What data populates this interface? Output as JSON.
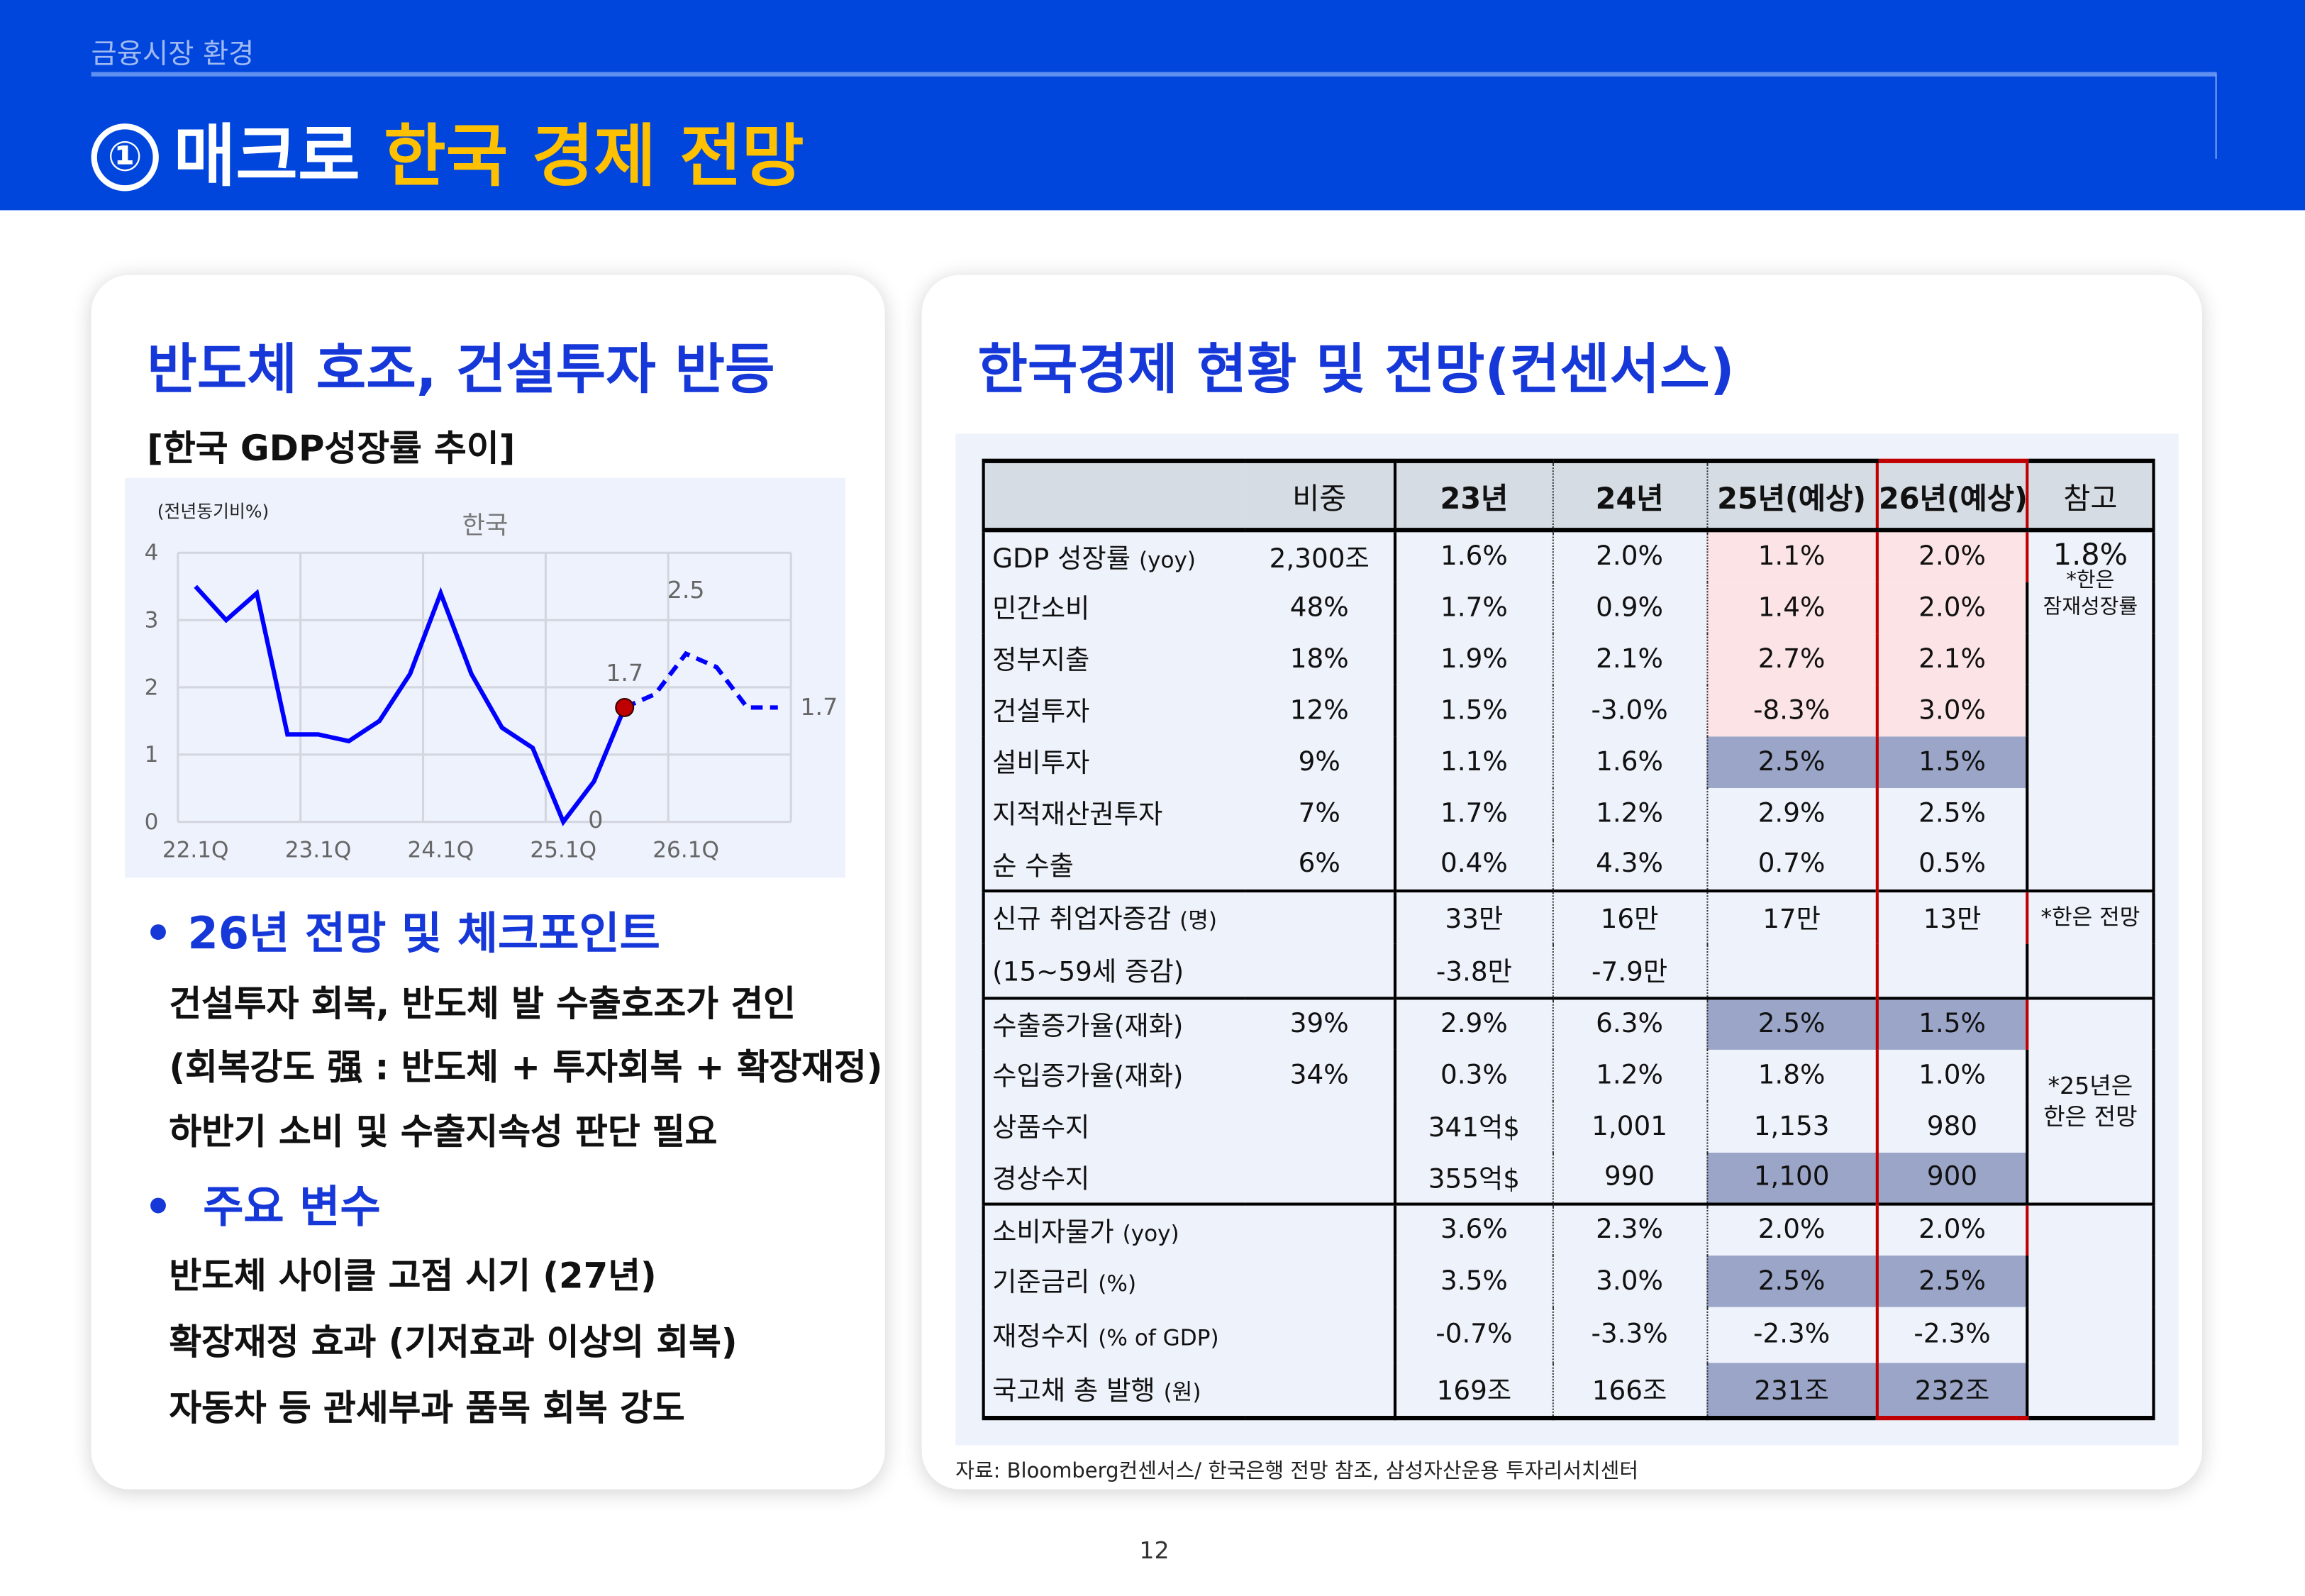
{
  "header": {
    "breadcrumb": "금융시장 환경",
    "number": "①",
    "title_white": "매크로",
    "title_yellow": "한국 경제 전망"
  },
  "left": {
    "heading": "반도체 호조, 건설투자 반등",
    "subheading": "[한국 GDP성장률 추이]",
    "section1": {
      "title": "26년 전망 및 체크포인트",
      "lines": [
        "건설투자 회복, 반도체 발 수출호조가 견인",
        "(회복강도 强 : 반도체 + 투자회복 + 확장재정)",
        "하반기 소비 및 수출지속성 판단 필요"
      ]
    },
    "section2": {
      "title": "주요 변수",
      "lines": [
        "반도체 사이클 고점 시기 (27년)",
        "확장재정 효과 (기저효과 이상의 회복)",
        "자동차 등 관세부과 품목 회복 강도"
      ]
    }
  },
  "chart_data": {
    "type": "line",
    "title": "한국",
    "ylabel": "(전년동기비%)",
    "ylim": [
      0,
      4
    ],
    "yticks": [
      0,
      1,
      2,
      3,
      4
    ],
    "xticks": [
      "22.1Q",
      "23.1Q",
      "24.1Q",
      "25.1Q",
      "26.1Q"
    ],
    "x": [
      "22.1Q",
      "22.2Q",
      "22.3Q",
      "22.4Q",
      "23.1Q",
      "23.2Q",
      "23.3Q",
      "23.4Q",
      "24.1Q",
      "24.2Q",
      "24.3Q",
      "24.4Q",
      "25.1Q",
      "25.2Q",
      "25.3Q",
      "25.4Q",
      "26.1Q",
      "26.2Q",
      "26.3Q",
      "26.4Q"
    ],
    "actual": [
      3.5,
      3.0,
      3.4,
      1.3,
      1.3,
      1.2,
      1.5,
      2.2,
      3.4,
      2.2,
      1.4,
      1.1,
      0.0,
      0.6,
      1.7,
      null,
      null,
      null,
      null,
      null
    ],
    "forecast": [
      null,
      null,
      null,
      null,
      null,
      null,
      null,
      null,
      null,
      null,
      null,
      null,
      null,
      null,
      1.7,
      1.9,
      2.5,
      2.3,
      1.7,
      1.7
    ],
    "annotations": [
      {
        "x": "25.1Q",
        "label": "0"
      },
      {
        "x": "25.3Q",
        "label": "1.7"
      },
      {
        "x": "26.1Q",
        "label": "2.5"
      },
      {
        "x": "26.4Q",
        "label": "1.7"
      }
    ],
    "grid": true,
    "colors": {
      "line": "#0000ff",
      "marker": "#c00000"
    }
  },
  "right": {
    "heading": "한국경제 현황 및 전망(컨센서스)",
    "headers": [
      "",
      "비중",
      "23년",
      "24년",
      "25년(예상)",
      "26년(예상)",
      "참고"
    ],
    "sections": [
      {
        "rows": [
          {
            "label": "GDP 성장률",
            "unit": "(yoy)",
            "w": "2,300조",
            "v": [
              "1.6%",
              "2.0%",
              "1.1%",
              "2.0%"
            ],
            "hl": "pink"
          },
          {
            "label": "민간소비",
            "w": "48%",
            "v": [
              "1.7%",
              "0.9%",
              "1.4%",
              "2.0%"
            ],
            "hl": "pink"
          },
          {
            "label": "정부지출",
            "w": "18%",
            "v": [
              "1.9%",
              "2.1%",
              "2.7%",
              "2.1%"
            ],
            "hl": "pink"
          },
          {
            "label": "건설투자",
            "w": "12%",
            "v": [
              "1.5%",
              "-3.0%",
              "-8.3%",
              "3.0%"
            ],
            "hl": "pink"
          },
          {
            "label": "설비투자",
            "w": "9%",
            "v": [
              "1.1%",
              "1.6%",
              "2.5%",
              "1.5%"
            ],
            "hl": "dark"
          },
          {
            "label": "지적재산권투자",
            "w": "7%",
            "v": [
              "1.7%",
              "1.2%",
              "2.9%",
              "2.5%"
            ]
          },
          {
            "label": "순 수출",
            "w": "6%",
            "v": [
              "0.4%",
              "4.3%",
              "0.7%",
              "0.5%"
            ]
          }
        ],
        "note_value": "1.8%",
        "note": "*한은 잠재성장률"
      },
      {
        "rows": [
          {
            "label": "신규 취업자증감",
            "unit": "(명)",
            "w": "",
            "v": [
              "33만",
              "16만",
              "17만",
              "13만"
            ]
          },
          {
            "label": " (15~59세 증감)",
            "w": "",
            "v": [
              "-3.8만",
              "-7.9만",
              "",
              ""
            ]
          }
        ],
        "note": "*한은 전망"
      },
      {
        "rows": [
          {
            "label": "수출증가율(재화)",
            "w": "39%",
            "v": [
              "2.9%",
              "6.3%",
              "2.5%",
              "1.5%"
            ],
            "hl": "dark"
          },
          {
            "label": "수입증가율(재화)",
            "w": "34%",
            "v": [
              "0.3%",
              "1.2%",
              "1.8%",
              "1.0%"
            ]
          },
          {
            "label": "상품수지",
            "w": "",
            "v": [
              "341억$",
              "1,001",
              "1,153",
              "980"
            ]
          },
          {
            "label": "경상수지",
            "w": "",
            "v": [
              "355억$",
              "990",
              "1,100",
              "900"
            ],
            "hl": "dark"
          }
        ],
        "note": "*25년은 한은 전망"
      },
      {
        "rows": [
          {
            "label": "소비자물가",
            "unit": "(yoy)",
            "w": "",
            "v": [
              "3.6%",
              "2.3%",
              "2.0%",
              "2.0%"
            ]
          },
          {
            "label": "기준금리",
            "unit": "(%)",
            "w": "",
            "v": [
              "3.5%",
              "3.0%",
              "2.5%",
              "2.5%"
            ],
            "hl": "dark"
          },
          {
            "label": "재정수지",
            "unit": "(% of GDP)",
            "w": "",
            "v": [
              "-0.7%",
              "-3.3%",
              "-2.3%",
              "-2.3%"
            ]
          },
          {
            "label": "국고채 총 발행",
            "unit": "(원)",
            "w": "",
            "v": [
              "169조",
              "166조",
              "231조",
              "232조"
            ],
            "hl": "dark"
          }
        ],
        "note": ""
      }
    ],
    "source": "자료: Bloomberg컨센서스/ 한국은행 전망 참조, 삼성자산운용 투자리서치센터"
  },
  "page_number": "12"
}
